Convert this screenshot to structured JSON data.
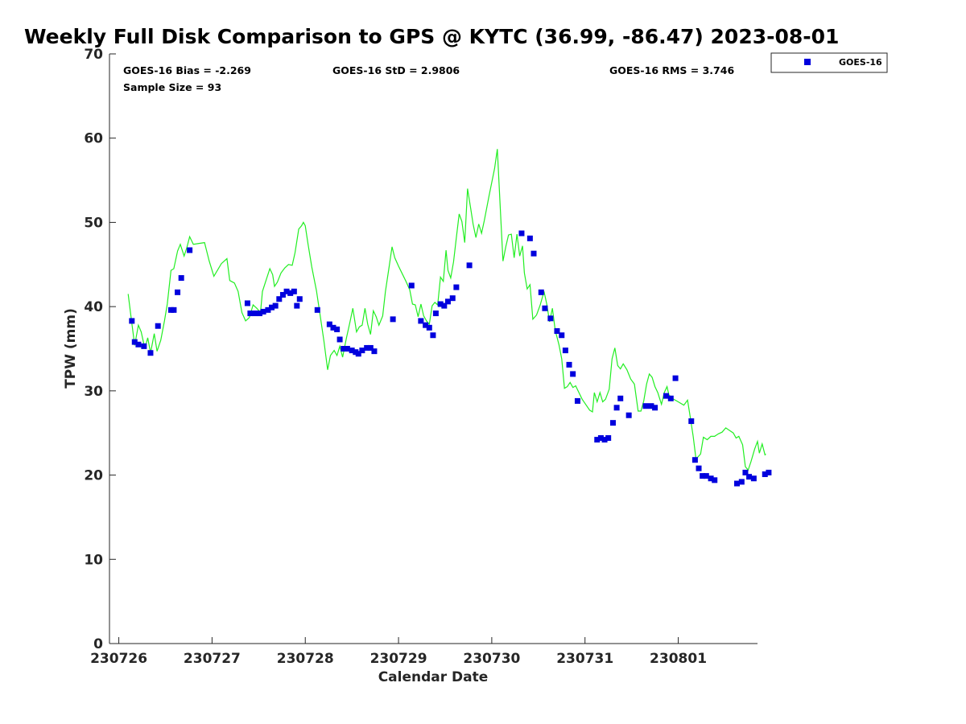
{
  "chart_data": {
    "type": "scatter",
    "title": "Weekly Full Disk Comparison to GPS @ KYTC (36.99, -86.47) 2023-08-01",
    "xlabel": "Calendar Date",
    "ylabel": "TPW (mm)",
    "xlim": [
      -0.1,
      6.85
    ],
    "ylim": [
      0,
      70
    ],
    "x_ticks": [
      0,
      1,
      2,
      3,
      4,
      5,
      6
    ],
    "x_tick_labels": [
      "230726",
      "230727",
      "230728",
      "230729",
      "230730",
      "230731",
      "230801"
    ],
    "y_ticks": [
      0,
      10,
      20,
      30,
      40,
      50,
      60,
      70
    ],
    "grid": false,
    "legend_position": "top-right",
    "legend": {
      "label": "GOES-16"
    },
    "stats": {
      "bias": "GOES-16 Bias = -2.269",
      "std": "GOES-16 StD = 2.9806",
      "rms": "GOES-16 RMS = 3.746",
      "sample": "Sample Size = 93"
    },
    "colors": {
      "goes": "#0000dd",
      "gps": "#22ee22"
    },
    "series": [
      {
        "name": "GOES-16",
        "style": "markers",
        "points": [
          [
            0.14,
            38.3
          ],
          [
            0.17,
            35.8
          ],
          [
            0.21,
            35.5
          ],
          [
            0.27,
            35.3
          ],
          [
            0.34,
            34.5
          ],
          [
            0.42,
            37.7
          ],
          [
            0.56,
            39.6
          ],
          [
            0.59,
            39.6
          ],
          [
            0.63,
            41.7
          ],
          [
            0.67,
            43.4
          ],
          [
            0.76,
            46.7
          ],
          [
            1.38,
            40.4
          ],
          [
            1.41,
            39.2
          ],
          [
            1.46,
            39.2
          ],
          [
            1.51,
            39.2
          ],
          [
            1.55,
            39.4
          ],
          [
            1.6,
            39.6
          ],
          [
            1.64,
            39.9
          ],
          [
            1.68,
            40.1
          ],
          [
            1.72,
            40.9
          ],
          [
            1.76,
            41.4
          ],
          [
            1.8,
            41.8
          ],
          [
            1.84,
            41.6
          ],
          [
            1.88,
            41.8
          ],
          [
            1.91,
            40.1
          ],
          [
            1.94,
            40.9
          ],
          [
            2.13,
            39.6
          ],
          [
            2.26,
            37.9
          ],
          [
            2.3,
            37.5
          ],
          [
            2.34,
            37.3
          ],
          [
            2.37,
            36.1
          ],
          [
            2.41,
            35.0
          ],
          [
            2.45,
            35.0
          ],
          [
            2.5,
            34.8
          ],
          [
            2.54,
            34.6
          ],
          [
            2.57,
            34.4
          ],
          [
            2.61,
            34.8
          ],
          [
            2.66,
            35.1
          ],
          [
            2.7,
            35.1
          ],
          [
            2.74,
            34.7
          ],
          [
            2.94,
            38.5
          ],
          [
            3.14,
            42.5
          ],
          [
            3.24,
            38.3
          ],
          [
            3.29,
            37.8
          ],
          [
            3.33,
            37.5
          ],
          [
            3.37,
            36.6
          ],
          [
            3.4,
            39.2
          ],
          [
            3.45,
            40.3
          ],
          [
            3.49,
            40.1
          ],
          [
            3.53,
            40.6
          ],
          [
            3.58,
            41.0
          ],
          [
            3.62,
            42.3
          ],
          [
            3.76,
            44.9
          ],
          [
            4.32,
            48.7
          ],
          [
            4.41,
            48.1
          ],
          [
            4.45,
            46.3
          ],
          [
            4.53,
            41.7
          ],
          [
            4.57,
            39.8
          ],
          [
            4.63,
            38.6
          ],
          [
            4.7,
            37.1
          ],
          [
            4.75,
            36.6
          ],
          [
            4.79,
            34.8
          ],
          [
            4.83,
            33.1
          ],
          [
            4.87,
            32.0
          ],
          [
            4.92,
            28.8
          ],
          [
            5.13,
            24.2
          ],
          [
            5.17,
            24.4
          ],
          [
            5.21,
            24.2
          ],
          [
            5.25,
            24.4
          ],
          [
            5.3,
            26.2
          ],
          [
            5.34,
            28.0
          ],
          [
            5.38,
            29.1
          ],
          [
            5.47,
            27.1
          ],
          [
            5.65,
            28.2
          ],
          [
            5.71,
            28.2
          ],
          [
            5.75,
            28.0
          ],
          [
            5.87,
            29.4
          ],
          [
            5.92,
            29.1
          ],
          [
            5.97,
            31.5
          ],
          [
            6.14,
            26.4
          ],
          [
            6.18,
            21.8
          ],
          [
            6.22,
            20.8
          ],
          [
            6.26,
            19.9
          ],
          [
            6.3,
            19.9
          ],
          [
            6.35,
            19.6
          ],
          [
            6.39,
            19.4
          ],
          [
            6.63,
            19.0
          ],
          [
            6.68,
            19.2
          ],
          [
            6.72,
            20.3
          ],
          [
            6.76,
            19.8
          ],
          [
            6.81,
            19.6
          ],
          [
            6.93,
            20.1
          ],
          [
            6.97,
            20.3
          ]
        ]
      },
      {
        "name": "GPS",
        "style": "line",
        "points": [
          [
            0.1,
            41.5
          ],
          [
            0.14,
            38.0
          ],
          [
            0.17,
            35.4
          ],
          [
            0.21,
            37.8
          ],
          [
            0.24,
            37.0
          ],
          [
            0.28,
            35.0
          ],
          [
            0.31,
            36.3
          ],
          [
            0.34,
            34.5
          ],
          [
            0.38,
            36.8
          ],
          [
            0.41,
            34.7
          ],
          [
            0.45,
            36.0
          ],
          [
            0.49,
            38.3
          ],
          [
            0.52,
            40.3
          ],
          [
            0.56,
            44.3
          ],
          [
            0.59,
            44.5
          ],
          [
            0.63,
            46.6
          ],
          [
            0.66,
            47.4
          ],
          [
            0.7,
            46.0
          ],
          [
            0.73,
            47.0
          ],
          [
            0.76,
            48.3
          ],
          [
            0.8,
            47.4
          ],
          [
            0.86,
            47.5
          ],
          [
            0.92,
            47.6
          ],
          [
            0.97,
            45.4
          ],
          [
            1.02,
            43.6
          ],
          [
            1.1,
            45.1
          ],
          [
            1.16,
            45.7
          ],
          [
            1.19,
            43.1
          ],
          [
            1.24,
            42.8
          ],
          [
            1.28,
            41.8
          ],
          [
            1.32,
            39.3
          ],
          [
            1.36,
            38.3
          ],
          [
            1.4,
            38.7
          ],
          [
            1.44,
            40.2
          ],
          [
            1.48,
            39.8
          ],
          [
            1.52,
            39.3
          ],
          [
            1.54,
            41.8
          ],
          [
            1.57,
            42.8
          ],
          [
            1.62,
            44.5
          ],
          [
            1.65,
            43.8
          ],
          [
            1.67,
            42.4
          ],
          [
            1.7,
            42.9
          ],
          [
            1.74,
            44.0
          ],
          [
            1.78,
            44.6
          ],
          [
            1.82,
            45.0
          ],
          [
            1.86,
            44.9
          ],
          [
            1.89,
            46.4
          ],
          [
            1.93,
            49.2
          ],
          [
            1.96,
            49.6
          ],
          [
            1.98,
            50.0
          ],
          [
            2.0,
            49.6
          ],
          [
            2.03,
            47.4
          ],
          [
            2.07,
            44.7
          ],
          [
            2.12,
            41.9
          ],
          [
            2.16,
            38.9
          ],
          [
            2.2,
            35.9
          ],
          [
            2.24,
            32.5
          ],
          [
            2.27,
            34.2
          ],
          [
            2.31,
            34.8
          ],
          [
            2.34,
            34.2
          ],
          [
            2.37,
            35.3
          ],
          [
            2.4,
            34.0
          ],
          [
            2.44,
            36.2
          ],
          [
            2.48,
            38.2
          ],
          [
            2.51,
            39.8
          ],
          [
            2.55,
            37.0
          ],
          [
            2.58,
            37.6
          ],
          [
            2.61,
            37.8
          ],
          [
            2.64,
            39.8
          ],
          [
            2.67,
            37.9
          ],
          [
            2.7,
            36.7
          ],
          [
            2.73,
            39.5
          ],
          [
            2.76,
            38.8
          ],
          [
            2.79,
            37.8
          ],
          [
            2.83,
            38.9
          ],
          [
            2.86,
            41.8
          ],
          [
            2.9,
            44.8
          ],
          [
            2.93,
            47.1
          ],
          [
            2.96,
            45.8
          ],
          [
            3.0,
            44.8
          ],
          [
            3.04,
            43.9
          ],
          [
            3.08,
            43.0
          ],
          [
            3.12,
            42.0
          ],
          [
            3.15,
            40.3
          ],
          [
            3.18,
            40.2
          ],
          [
            3.21,
            38.8
          ],
          [
            3.24,
            40.3
          ],
          [
            3.27,
            38.9
          ],
          [
            3.3,
            38.3
          ],
          [
            3.33,
            37.9
          ],
          [
            3.36,
            40.1
          ],
          [
            3.39,
            40.5
          ],
          [
            3.42,
            40.2
          ],
          [
            3.45,
            43.5
          ],
          [
            3.48,
            43.0
          ],
          [
            3.51,
            46.7
          ],
          [
            3.53,
            44.3
          ],
          [
            3.56,
            43.4
          ],
          [
            3.59,
            45.3
          ],
          [
            3.62,
            48.2
          ],
          [
            3.65,
            51.0
          ],
          [
            3.68,
            50.1
          ],
          [
            3.71,
            47.6
          ],
          [
            3.74,
            54.0
          ],
          [
            3.77,
            51.9
          ],
          [
            3.8,
            49.8
          ],
          [
            3.83,
            48.2
          ],
          [
            3.86,
            49.8
          ],
          [
            3.89,
            48.7
          ],
          [
            3.92,
            50.2
          ],
          [
            3.97,
            53.1
          ],
          [
            4.03,
            56.4
          ],
          [
            4.06,
            58.7
          ],
          [
            4.09,
            52.0
          ],
          [
            4.12,
            45.4
          ],
          [
            4.15,
            47.1
          ],
          [
            4.18,
            48.5
          ],
          [
            4.21,
            48.6
          ],
          [
            4.24,
            45.8
          ],
          [
            4.27,
            48.6
          ],
          [
            4.3,
            46.0
          ],
          [
            4.33,
            47.2
          ],
          [
            4.35,
            44.0
          ],
          [
            4.38,
            42.1
          ],
          [
            4.41,
            42.6
          ],
          [
            4.44,
            38.5
          ],
          [
            4.48,
            39.0
          ],
          [
            4.52,
            40.2
          ],
          [
            4.56,
            41.8
          ],
          [
            4.59,
            40.3
          ],
          [
            4.62,
            38.2
          ],
          [
            4.65,
            39.8
          ],
          [
            4.68,
            37.2
          ],
          [
            4.72,
            35.5
          ],
          [
            4.75,
            33.8
          ],
          [
            4.78,
            30.3
          ],
          [
            4.81,
            30.5
          ],
          [
            4.84,
            31.0
          ],
          [
            4.87,
            30.4
          ],
          [
            4.9,
            30.6
          ],
          [
            4.93,
            29.9
          ],
          [
            4.97,
            29.0
          ],
          [
            5.05,
            27.7
          ],
          [
            5.08,
            27.5
          ],
          [
            5.1,
            29.8
          ],
          [
            5.13,
            28.7
          ],
          [
            5.16,
            29.8
          ],
          [
            5.19,
            28.7
          ],
          [
            5.22,
            29.0
          ],
          [
            5.26,
            30.2
          ],
          [
            5.29,
            33.8
          ],
          [
            5.32,
            35.1
          ],
          [
            5.35,
            33.0
          ],
          [
            5.38,
            32.6
          ],
          [
            5.41,
            33.2
          ],
          [
            5.45,
            32.5
          ],
          [
            5.49,
            31.4
          ],
          [
            5.53,
            30.8
          ],
          [
            5.57,
            27.6
          ],
          [
            5.6,
            27.6
          ],
          [
            5.63,
            28.8
          ],
          [
            5.66,
            30.8
          ],
          [
            5.69,
            32.0
          ],
          [
            5.72,
            31.6
          ],
          [
            5.75,
            30.5
          ],
          [
            5.78,
            29.8
          ],
          [
            5.82,
            28.4
          ],
          [
            5.85,
            29.8
          ],
          [
            5.88,
            30.5
          ],
          [
            5.9,
            29.5
          ],
          [
            5.95,
            29.0
          ],
          [
            6.0,
            28.7
          ],
          [
            6.06,
            28.3
          ],
          [
            6.1,
            28.9
          ],
          [
            6.13,
            26.8
          ],
          [
            6.16,
            24.6
          ],
          [
            6.19,
            21.9
          ],
          [
            6.24,
            22.5
          ],
          [
            6.27,
            24.5
          ],
          [
            6.31,
            24.2
          ],
          [
            6.35,
            24.6
          ],
          [
            6.39,
            24.6
          ],
          [
            6.43,
            24.9
          ],
          [
            6.47,
            25.1
          ],
          [
            6.51,
            25.6
          ],
          [
            6.55,
            25.3
          ],
          [
            6.59,
            25.0
          ],
          [
            6.62,
            24.4
          ],
          [
            6.65,
            24.6
          ],
          [
            6.69,
            23.6
          ],
          [
            6.72,
            21.0
          ],
          [
            6.75,
            20.6
          ],
          [
            6.78,
            21.6
          ],
          [
            6.82,
            23.1
          ],
          [
            6.85,
            24.0
          ],
          [
            6.87,
            22.6
          ],
          [
            6.9,
            23.7
          ],
          [
            6.93,
            22.4
          ],
          [
            6.94,
            22.5
          ]
        ]
      }
    ]
  }
}
